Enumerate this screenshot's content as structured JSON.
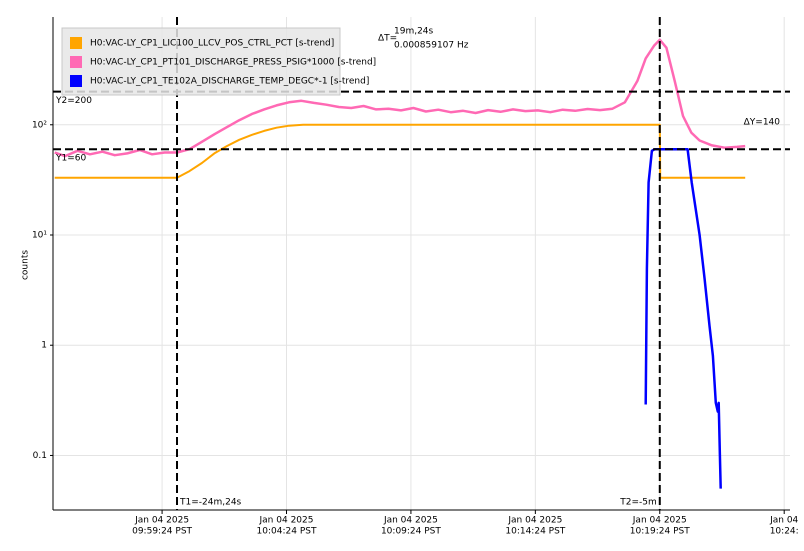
{
  "chart_data": {
    "type": "line",
    "ylabel": "counts",
    "log_y": true,
    "grid": true,
    "legend": "upper left",
    "xlim": [
      "09:55:01",
      "10:24:38"
    ],
    "ylim": [
      0.032,
      950
    ],
    "yticks": [
      {
        "value": 0.1,
        "label": "0.1"
      },
      1,
      {
        "value": 10,
        "label": "10¹"
      },
      {
        "value": 100,
        "label": "10²"
      }
    ],
    "xticks": [
      {
        "value": "09:59:24",
        "label": [
          "Jan 04 2025",
          "09:59:24 PST"
        ]
      },
      {
        "value": "10:04:24",
        "label": [
          "Jan 04 2025",
          "10:04:24 PST"
        ]
      },
      {
        "value": "10:09:24",
        "label": [
          "Jan 04 2025",
          "10:09:24 PST"
        ]
      },
      {
        "value": "10:14:24",
        "label": [
          "Jan 04 2025",
          "10:14:24 PST"
        ]
      },
      {
        "value": "10:19:24",
        "label": [
          "Jan 04 2025",
          "10:19:24 PST"
        ]
      },
      {
        "value": "10:24:24",
        "label": [
          "Jan 04",
          "10:24:"
        ]
      }
    ],
    "series": [
      {
        "name": "H0:VAC-LY_CP1_LIC100_LLCV_POS_CTRL_PCT [s-trend]",
        "color": "#ffa500",
        "x": [
          "09:55:05",
          "10:00:00",
          "10:00:30",
          "10:01:00",
          "10:01:30",
          "10:02:00",
          "10:02:30",
          "10:03:00",
          "10:03:30",
          "10:04:00",
          "10:04:30",
          "10:05:04",
          "10:19:24",
          "10:19:25",
          "10:22:50"
        ],
        "values": [
          33,
          33,
          38,
          45,
          55,
          64,
          73,
          81,
          88,
          94,
          98,
          100,
          100,
          33,
          33
        ]
      },
      {
        "name": "H0:VAC-LY_CP1_PT101_DISCHARGE_PRESS_PSIG*1000 [s-trend]",
        "color": "#ff69b4",
        "x": [
          "09:55:05",
          "09:55:30",
          "09:56:00",
          "09:56:30",
          "09:57:00",
          "09:57:30",
          "09:58:00",
          "09:58:30",
          "09:59:00",
          "09:59:30",
          "10:00:00",
          "10:00:30",
          "10:01:00",
          "10:01:30",
          "10:02:00",
          "10:02:30",
          "10:03:00",
          "10:03:30",
          "10:04:00",
          "10:04:30",
          "10:05:00",
          "10:05:30",
          "10:06:00",
          "10:06:30",
          "10:07:00",
          "10:07:30",
          "10:08:00",
          "10:08:30",
          "10:09:00",
          "10:09:30",
          "10:10:00",
          "10:10:30",
          "10:11:00",
          "10:11:30",
          "10:12:00",
          "10:12:30",
          "10:13:00",
          "10:13:30",
          "10:14:00",
          "10:14:30",
          "10:15:00",
          "10:15:30",
          "10:16:00",
          "10:16:30",
          "10:17:00",
          "10:17:30",
          "10:18:00",
          "10:18:30",
          "10:18:50",
          "10:19:10",
          "10:19:24",
          "10:19:40",
          "10:20:00",
          "10:20:20",
          "10:20:40",
          "10:21:00",
          "10:21:30",
          "10:22:00",
          "10:22:30",
          "10:22:50"
        ],
        "values": [
          56,
          52,
          58,
          54,
          57,
          53,
          55,
          59,
          54,
          56,
          56,
          60,
          70,
          82,
          95,
          110,
          125,
          138,
          150,
          160,
          165,
          158,
          152,
          145,
          142,
          148,
          138,
          140,
          135,
          142,
          132,
          137,
          130,
          134,
          128,
          136,
          131,
          138,
          133,
          135,
          130,
          137,
          134,
          139,
          136,
          140,
          160,
          250,
          400,
          520,
          590,
          500,
          250,
          120,
          85,
          72,
          65,
          62,
          63,
          64
        ]
      },
      {
        "name": "H0:VAC-LY_CP1_TE102A_DISCHARGE_TEMP_DEGC*-1 [s-trend]",
        "color": "#0000ff",
        "x": [
          "10:18:50",
          "10:18:53",
          "10:18:57",
          "10:19:05",
          "10:19:12",
          "10:20:31",
          "10:20:41",
          "10:21:00",
          "10:21:12",
          "10:21:24",
          "10:21:32",
          "10:21:39",
          "10:21:44",
          "10:21:46",
          "10:21:49",
          "10:21:51"
        ],
        "values": [
          0.29,
          5,
          30,
          58,
          60,
          60,
          30,
          10,
          4,
          1.5,
          0.8,
          0.3,
          0.25,
          0.3,
          0.1,
          0.05
        ]
      }
    ],
    "cursors": {
      "t1": {
        "x": "10:00:00",
        "label": "T1=-24m,24s"
      },
      "t2": {
        "x": "10:19:24",
        "label": "T2=-5m"
      },
      "y1": {
        "value": 60,
        "label": "Y1=60"
      },
      "y2": {
        "value": 200,
        "label": "Y2=200"
      },
      "dy_label": "ΔY=140",
      "dt_label": "ΔT=",
      "dt_value": "19m,24s",
      "dt_freq": "0.000859107 Hz"
    }
  }
}
